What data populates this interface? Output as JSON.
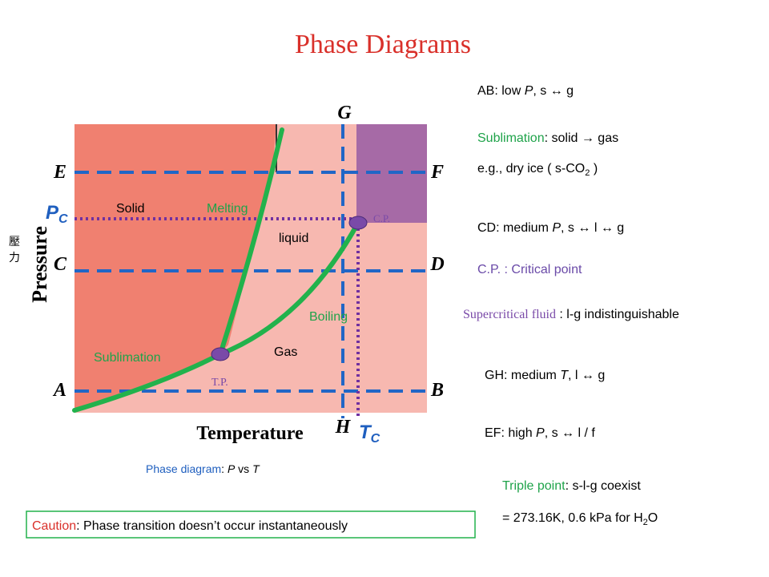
{
  "title": "Phase Diagrams",
  "diagram": {
    "axis_x": "Temperature",
    "axis_y": "Pressure",
    "axis_y_cn": [
      "壓",
      "力"
    ],
    "points": {
      "E": "E",
      "F": "F",
      "C": "C",
      "D": "D",
      "A": "A",
      "B": "B",
      "G": "G",
      "H": "H"
    },
    "pc": [
      "P",
      "C"
    ],
    "tc": [
      "T",
      "C"
    ],
    "regions": {
      "solid": "Solid",
      "liquid": "liquid",
      "gas": "Gas"
    },
    "curves": {
      "melting": "Melting",
      "boiling": "Boiling",
      "sublimation": "Sublimation"
    },
    "cp": "C.P.",
    "tp": "T.P.",
    "caption": [
      "Phase diagram",
      ": ",
      "P",
      " vs ",
      "T"
    ]
  },
  "caution": [
    "Caution",
    ":  Phase transition doesn’t occur instantaneously"
  ],
  "notes": {
    "ab": [
      "AB:   low ",
      "P",
      ",    s  ↔  g"
    ],
    "sublimation": [
      "Sublimation",
      ":  solid  → gas"
    ],
    "dry_ice": [
      "e.g., dry ice ( s-CO",
      "2",
      " )"
    ],
    "cd": [
      "CD:  medium ",
      "P",
      ",     s  ↔  l    ↔  g"
    ],
    "cp": [
      "C.P. :  Critical point"
    ],
    "supercritical": [
      "Supercritical fluid",
      " : l-g indistinguishable"
    ],
    "gh": [
      "GH:  medium ",
      "T",
      ",      l  ↔  g"
    ],
    "ef": [
      "EF:  high ",
      "P",
      ",  s  ↔ l / f"
    ],
    "triple": [
      "Triple point",
      ":  s-l-g coexist"
    ],
    "h2o": [
      "= 273.16K, 0.6 kPa for H",
      "2",
      "O"
    ]
  }
}
